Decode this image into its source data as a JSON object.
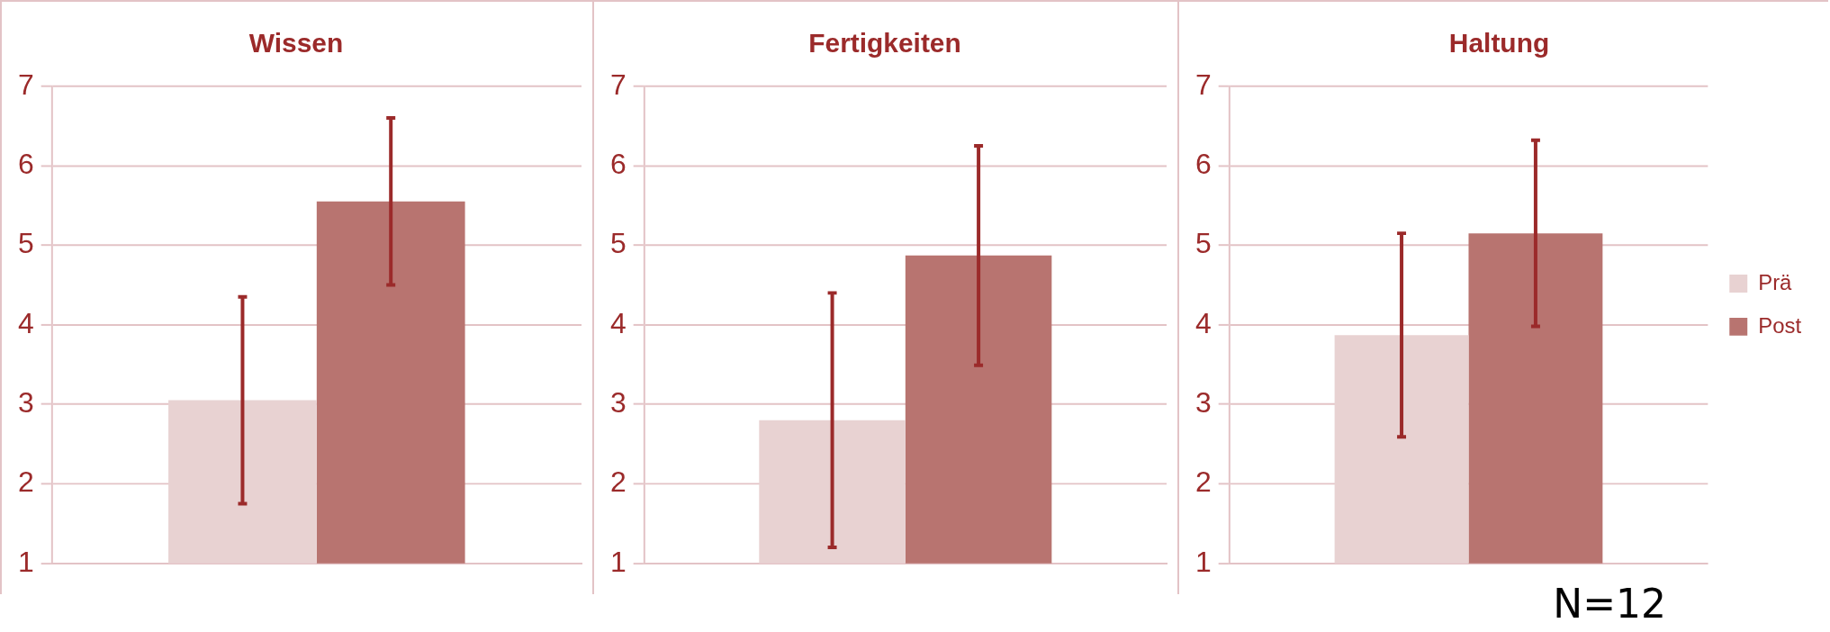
{
  "chart_data": [
    {
      "type": "bar",
      "title": "Wissen",
      "categories": [
        null
      ],
      "series": [
        {
          "color": "#e8d2d2",
          "values": [
            3.05
          ],
          "errors": [
            1.3
          ]
        },
        {
          "color": "#b87470",
          "values": [
            5.55
          ],
          "errors": [
            1.05
          ]
        }
      ],
      "ylim": [
        1,
        7
      ],
      "yticks": [
        1,
        2,
        3,
        4,
        5,
        6,
        7
      ],
      "grid": "y",
      "legend": false
    },
    {
      "type": "bar",
      "title": "Fertigkeiten",
      "categories": [
        null
      ],
      "series": [
        {
          "color": "#e8d2d2",
          "values": [
            2.8
          ],
          "errors": [
            1.6
          ]
        },
        {
          "color": "#b87470",
          "values": [
            4.87
          ],
          "errors": [
            1.38
          ]
        }
      ],
      "ylim": [
        1,
        7
      ],
      "yticks": [
        1,
        2,
        3,
        4,
        5,
        6,
        7
      ],
      "grid": "y",
      "legend": false
    },
    {
      "type": "bar",
      "title": "Haltung",
      "categories": [
        null
      ],
      "series": [
        {
          "name": "Prä",
          "color": "#e8d2d2",
          "values": [
            3.87
          ],
          "errors": [
            1.28
          ]
        },
        {
          "name": "Post",
          "color": "#b87470",
          "values": [
            5.15
          ],
          "errors": [
            1.17
          ]
        }
      ],
      "ylim": [
        1,
        7
      ],
      "yticks": [
        1,
        2,
        3,
        4,
        5,
        6,
        7
      ],
      "grid": "y",
      "legend": "right",
      "annotations": [
        "N=12"
      ]
    }
  ]
}
